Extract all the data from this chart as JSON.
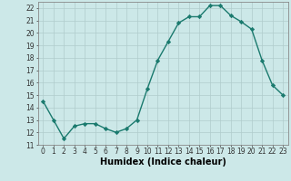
{
  "x": [
    0,
    1,
    2,
    3,
    4,
    5,
    6,
    7,
    8,
    9,
    10,
    11,
    12,
    13,
    14,
    15,
    16,
    17,
    18,
    19,
    20,
    21,
    22,
    23
  ],
  "y": [
    14.5,
    13.0,
    11.5,
    12.5,
    12.7,
    12.7,
    12.3,
    12.0,
    12.3,
    13.0,
    15.5,
    17.8,
    19.3,
    20.8,
    21.3,
    21.3,
    22.2,
    22.2,
    21.4,
    20.9,
    20.3,
    17.8,
    15.8,
    15.0
  ],
  "line_color": "#1a7a6e",
  "marker": "D",
  "marker_size": 2.2,
  "bg_color": "#cce8e8",
  "grid_color": "#b0cccc",
  "xlabel": "Humidex (Indice chaleur)",
  "xlim": [
    -0.5,
    23.5
  ],
  "ylim": [
    11,
    22.5
  ],
  "yticks": [
    11,
    12,
    13,
    14,
    15,
    16,
    17,
    18,
    19,
    20,
    21,
    22
  ],
  "xticks": [
    0,
    1,
    2,
    3,
    4,
    5,
    6,
    7,
    8,
    9,
    10,
    11,
    12,
    13,
    14,
    15,
    16,
    17,
    18,
    19,
    20,
    21,
    22,
    23
  ],
  "tick_fontsize": 5.5,
  "label_fontsize": 7.0,
  "line_width": 1.0
}
